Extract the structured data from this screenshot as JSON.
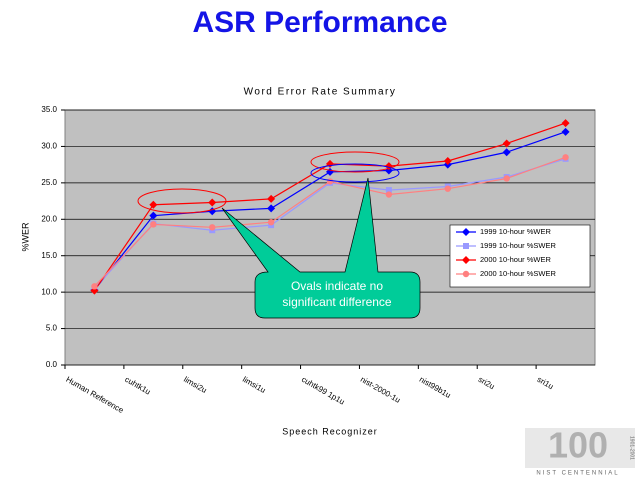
{
  "slide_title": "ASR Performance",
  "chart_data": {
    "type": "line",
    "title": "Word Error Rate Summary",
    "x_label": "Speech Recognizer",
    "y_label": "%WER",
    "categories": [
      "Human Reference",
      "cuhtk1u",
      "limsi2u",
      "limsi1u",
      "cuhtk99 1p1u",
      "nist-2000-1u",
      "nist99b1u",
      "sri2u",
      "sri1u"
    ],
    "series": [
      {
        "name": "1999 10-hour %WER",
        "color": "#0000ff",
        "marker": "diamond",
        "values": [
          10.3,
          20.5,
          21.1,
          21.5,
          26.5,
          26.7,
          27.5,
          29.2,
          32.0
        ]
      },
      {
        "name": "1999 10-hour %SWER",
        "color": "#9999ff",
        "marker": "square",
        "values": [
          10.5,
          19.4,
          18.5,
          19.2,
          25.0,
          24.0,
          24.5,
          25.8,
          28.3
        ]
      },
      {
        "name": "2000 10-hour %WER",
        "color": "#ff0000",
        "marker": "diamond",
        "values": [
          10.2,
          22.0,
          22.3,
          22.8,
          27.6,
          27.3,
          28.0,
          30.4,
          33.2
        ]
      },
      {
        "name": "2000 10-hour %SWER",
        "color": "#ff8080",
        "marker": "circle",
        "values": [
          10.8,
          19.3,
          18.9,
          19.6,
          25.2,
          23.4,
          24.2,
          25.6,
          28.5
        ]
      }
    ],
    "ylim": [
      0,
      35
    ],
    "yticks": [
      {
        "value": 0,
        "label": "0.0"
      },
      {
        "value": 5,
        "label": "5.0"
      },
      {
        "value": 10,
        "label": "10.0"
      },
      {
        "value": 15,
        "label": "15.0"
      },
      {
        "value": 20,
        "label": "20.0"
      },
      {
        "value": 25,
        "label": "25.0"
      },
      {
        "value": 30,
        "label": "30.0"
      },
      {
        "value": 35,
        "label": "35.0"
      }
    ],
    "grid": true,
    "annotation": [
      "Ovals indicate no",
      "significant difference"
    ]
  },
  "logo": {
    "number": "100",
    "caption": "NIST CENTENNIAL",
    "years": "1901-2001"
  }
}
